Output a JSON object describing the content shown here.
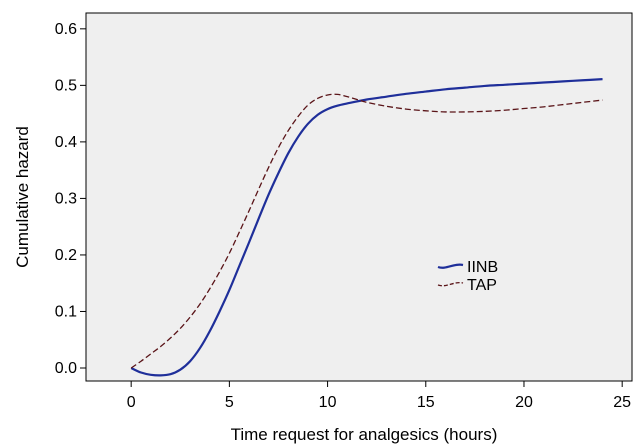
{
  "chart_data": {
    "type": "line",
    "title": "",
    "xlabel": "Time request for analgesics (hours)",
    "ylabel": "Cumulative hazard",
    "xlim": [
      -2.3,
      25.5
    ],
    "ylim": [
      -0.023,
      0.628
    ],
    "xticks": [
      0,
      5,
      10,
      15,
      20,
      25
    ],
    "xtick_labels": [
      "0",
      "5",
      "10",
      "15",
      "20",
      "25"
    ],
    "yticks": [
      0.0,
      0.1,
      0.2,
      0.3,
      0.4,
      0.5,
      0.6
    ],
    "ytick_labels": [
      "0.0",
      "0.1",
      "0.2",
      "0.3",
      "0.4",
      "0.5",
      "0.6"
    ],
    "grid": false,
    "legend_position": "center-right",
    "background_color": "#efefef",
    "series": [
      {
        "name": "IINB",
        "color": "#1f2f9a",
        "style": "solid",
        "x": [
          0,
          0.5,
          1,
          1.5,
          2,
          2.5,
          3,
          3.5,
          4,
          4.5,
          5,
          5.5,
          6,
          6.5,
          7,
          7.5,
          8,
          8.5,
          9,
          9.5,
          10,
          10.5,
          11,
          12,
          13,
          14,
          15,
          16,
          17,
          18,
          19,
          20,
          21,
          22,
          23,
          24
        ],
        "y": [
          0.0,
          -0.008,
          -0.012,
          -0.013,
          -0.011,
          -0.003,
          0.012,
          0.035,
          0.065,
          0.1,
          0.138,
          0.18,
          0.222,
          0.265,
          0.307,
          0.345,
          0.38,
          0.409,
          0.432,
          0.448,
          0.458,
          0.464,
          0.468,
          0.475,
          0.48,
          0.485,
          0.489,
          0.493,
          0.496,
          0.499,
          0.501,
          0.503,
          0.505,
          0.507,
          0.509,
          0.511
        ]
      },
      {
        "name": "TAP",
        "color": "#5a1418",
        "style": "dashed",
        "x": [
          0,
          0.5,
          1,
          1.5,
          2,
          2.5,
          3,
          3.5,
          4,
          4.5,
          5,
          5.5,
          6,
          6.5,
          7,
          7.5,
          8,
          8.5,
          9,
          9.5,
          10,
          10.5,
          11,
          11.5,
          12,
          13,
          14,
          15,
          16,
          17,
          18,
          19,
          20,
          21,
          22,
          23,
          24
        ],
        "y": [
          0.0,
          0.012,
          0.025,
          0.038,
          0.053,
          0.07,
          0.09,
          0.113,
          0.14,
          0.17,
          0.203,
          0.24,
          0.278,
          0.317,
          0.355,
          0.39,
          0.42,
          0.445,
          0.465,
          0.477,
          0.483,
          0.484,
          0.48,
          0.475,
          0.47,
          0.463,
          0.458,
          0.455,
          0.453,
          0.453,
          0.454,
          0.456,
          0.459,
          0.462,
          0.466,
          0.47,
          0.474
        ]
      }
    ]
  }
}
